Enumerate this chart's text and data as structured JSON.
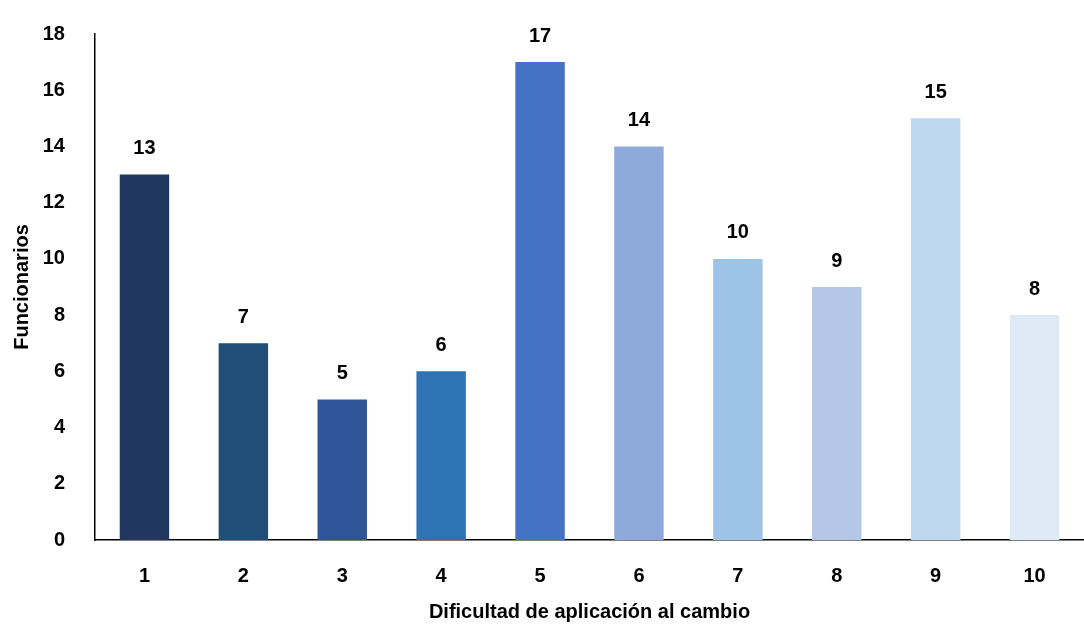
{
  "chart_data": {
    "type": "bar",
    "xlabel": "Dificultad de aplicación al cambio",
    "ylabel": "Funcionarios",
    "categories": [
      "1",
      "2",
      "3",
      "4",
      "5",
      "6",
      "7",
      "8",
      "9",
      "10"
    ],
    "values": [
      13,
      7,
      5,
      6,
      17,
      14,
      10,
      9,
      15,
      8
    ],
    "colors": [
      "#213760",
      "#204e78",
      "#2e5597",
      "#2e74b5",
      "#4472c4",
      "#8eaadb",
      "#9dc3e6",
      "#b4c7e7",
      "#bdd7ee",
      "#deebf7"
    ],
    "ylim": [
      0,
      18
    ],
    "yticks": [
      0,
      2,
      4,
      6,
      8,
      10,
      12,
      14,
      16,
      18
    ],
    "grid": false,
    "legend": false,
    "data_labels": true
  }
}
